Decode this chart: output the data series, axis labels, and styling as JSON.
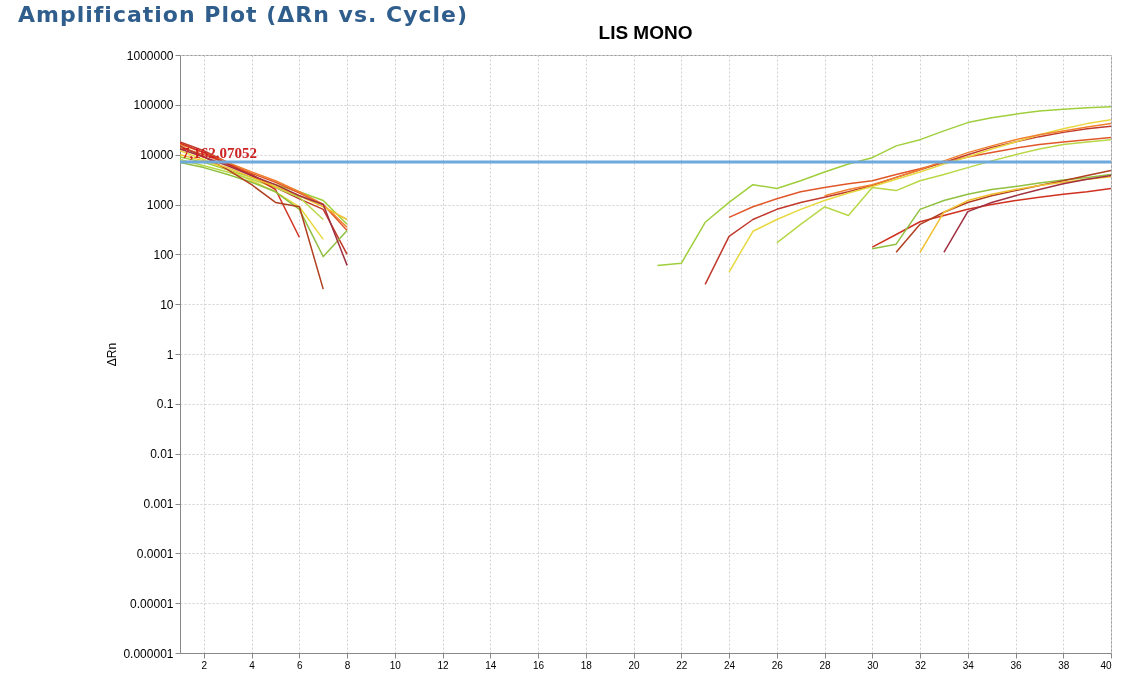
{
  "chart_data": {
    "type": "line",
    "title": "Amplification Plot (ΔRn vs. Cycle)",
    "subtitle": "LIS MONO",
    "ylabel": "ΔRn",
    "log": true,
    "grid": true,
    "legend": false,
    "marker": "none",
    "line_style": "solid",
    "xlim": [
      1,
      40
    ],
    "xticks": [
      2,
      4,
      6,
      8,
      10,
      12,
      14,
      16,
      18,
      20,
      22,
      24,
      26,
      28,
      30,
      32,
      34,
      36,
      38,
      40
    ],
    "ylim": [
      1e-06,
      1000000
    ],
    "yticks": [
      1000000,
      100000,
      10000,
      1000,
      100,
      10,
      1,
      0.1,
      0.01,
      0.001,
      0.0001,
      {
        "value": 1e-05,
        "label": "0.00001"
      },
      {
        "value": 1e-06,
        "label": "0.000001"
      }
    ],
    "x": [
      1,
      2,
      3,
      4,
      5,
      6,
      7,
      8,
      9,
      10,
      11,
      12,
      13,
      14,
      15,
      16,
      17,
      18,
      19,
      20,
      21,
      22,
      23,
      24,
      25,
      26,
      27,
      28,
      29,
      30,
      31,
      32,
      33,
      34,
      35,
      36,
      37,
      38,
      39,
      40
    ],
    "ref_lines": [
      {
        "axis": "y",
        "value": 7162.07052,
        "label": "7,162.07052",
        "color": "#6fa8dc"
      }
    ],
    "series": [
      {
        "color": "#9fcf3c",
        "values": [
          9000,
          7000,
          5000,
          3500,
          2500,
          1800,
          1200,
          400,
          null,
          null,
          null,
          null,
          null,
          null,
          null,
          null,
          null,
          null,
          null,
          null,
          60,
          66,
          440,
          1100,
          2500,
          2100,
          3000,
          4500,
          6500,
          8700,
          15000,
          20000,
          30000,
          44000,
          55000,
          65000,
          75000,
          82000,
          87000,
          91000
        ]
      },
      {
        "color": "#c0392b",
        "values": [
          18000,
          12000,
          7000,
          4000,
          2200,
          1300,
          800,
          100,
          null,
          null,
          null,
          null,
          null,
          null,
          null,
          null,
          null,
          null,
          null,
          null,
          null,
          null,
          25,
          230,
          500,
          800,
          1100,
          1400,
          1800,
          2400,
          3500,
          5000,
          7000,
          10000,
          14000,
          18000,
          23000,
          28000,
          33000,
          37000
        ]
      },
      {
        "color": "#e0582a",
        "values": [
          14000,
          10000,
          6500,
          4200,
          2800,
          1700,
          1000,
          300,
          null,
          null,
          null,
          null,
          null,
          null,
          null,
          null,
          null,
          null,
          null,
          null,
          null,
          null,
          null,
          550,
          900,
          1300,
          1800,
          2200,
          2600,
          3000,
          4000,
          5200,
          7000,
          9000,
          11000,
          13500,
          16000,
          18000,
          20000,
          22000
        ]
      },
      {
        "color": "#e8d840",
        "values": [
          12000,
          8000,
          5000,
          3000,
          1800,
          900,
          200,
          null,
          null,
          null,
          null,
          null,
          null,
          null,
          null,
          null,
          null,
          null,
          null,
          null,
          null,
          null,
          null,
          44,
          290,
          500,
          800,
          1200,
          1700,
          2300,
          3200,
          4500,
          6500,
          9000,
          13000,
          18000,
          25000,
          33000,
          42000,
          50000
        ]
      },
      {
        "color": "#b8d848",
        "values": [
          8000,
          6000,
          4500,
          3200,
          2200,
          1400,
          500,
          null,
          null,
          null,
          null,
          null,
          null,
          null,
          null,
          null,
          null,
          null,
          null,
          null,
          null,
          null,
          null,
          null,
          null,
          170,
          400,
          900,
          600,
          2200,
          1900,
          3000,
          4000,
          5500,
          7500,
          10000,
          13000,
          16000,
          18000,
          20000
        ]
      },
      {
        "color": "#f08030",
        "values": [
          16000,
          11000,
          7000,
          4500,
          3000,
          1800,
          1000,
          350,
          null,
          null,
          null,
          null,
          null,
          null,
          null,
          null,
          null,
          null,
          null,
          null,
          null,
          null,
          null,
          null,
          null,
          null,
          null,
          1500,
          2000,
          2500,
          3500,
          5000,
          7500,
          11000,
          15000,
          20000,
          25000,
          30000,
          36000,
          42000
        ]
      },
      {
        "color": "#d03020",
        "values": [
          17000,
          11000,
          6500,
          3800,
          2000,
          220,
          null,
          null,
          null,
          null,
          null,
          null,
          null,
          null,
          null,
          null,
          null,
          null,
          null,
          null,
          null,
          null,
          null,
          null,
          null,
          null,
          null,
          null,
          null,
          140,
          250,
          450,
          600,
          800,
          1000,
          1200,
          1400,
          1600,
          1800,
          2100
        ]
      },
      {
        "color": "#90c040",
        "values": [
          7000,
          5500,
          4000,
          2800,
          1800,
          800,
          90,
          300,
          null,
          null,
          null,
          null,
          null,
          null,
          null,
          null,
          null,
          null,
          null,
          null,
          null,
          null,
          null,
          null,
          null,
          null,
          null,
          null,
          null,
          130,
          160,
          800,
          1200,
          1600,
          2000,
          2300,
          2700,
          3100,
          3500,
          4000
        ]
      },
      {
        "color": "#b04020",
        "values": [
          15000,
          9000,
          5000,
          2500,
          1100,
          900,
          20,
          null,
          null,
          null,
          null,
          null,
          null,
          null,
          null,
          null,
          null,
          null,
          null,
          null,
          null,
          null,
          null,
          null,
          null,
          null,
          null,
          null,
          null,
          null,
          110,
          400,
          700,
          1100,
          1500,
          1900,
          2400,
          3000,
          3800,
          4800
        ]
      },
      {
        "color": "#f0c030",
        "values": [
          10000,
          7500,
          5500,
          3500,
          2300,
          1500,
          900,
          500,
          null,
          null,
          null,
          null,
          null,
          null,
          null,
          null,
          null,
          null,
          null,
          null,
          null,
          null,
          null,
          null,
          null,
          null,
          null,
          null,
          null,
          null,
          null,
          110,
          700,
          1200,
          1600,
          2000,
          2400,
          2800,
          3200,
          3600
        ]
      },
      {
        "color": "#a03040",
        "values": [
          13000,
          9000,
          6000,
          3800,
          2500,
          1500,
          1000,
          60,
          null,
          null,
          null,
          null,
          null,
          null,
          null,
          null,
          null,
          null,
          null,
          null,
          null,
          null,
          null,
          null,
          null,
          null,
          null,
          null,
          null,
          null,
          null,
          null,
          110,
          720,
          1100,
          1500,
          2000,
          2600,
          3200,
          3800
        ]
      }
    ]
  }
}
